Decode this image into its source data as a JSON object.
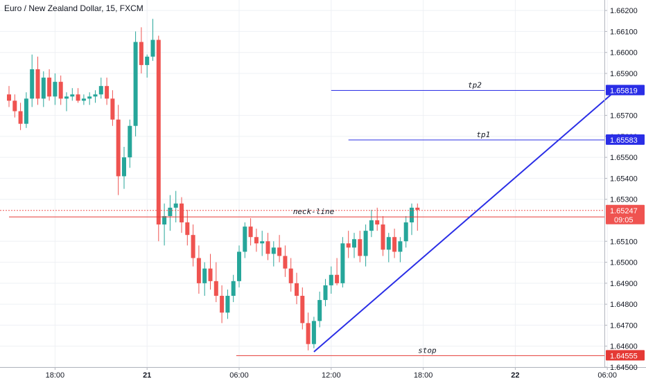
{
  "chart_data": {
    "type": "candlestick",
    "title": "Euro / New Zealand Dollar, 15, FXCM",
    "y_range": [
      1.645,
      1.6625
    ],
    "y_ticks": [
      "1.66200",
      "1.66100",
      "1.66000",
      "1.65900",
      "1.65700",
      "1.65600",
      "1.65500",
      "1.65400",
      "1.65300",
      "1.65100",
      "1.65000",
      "1.64900",
      "1.64800",
      "1.64700",
      "1.64600",
      "1.64500"
    ],
    "y_tick_values": [
      1.662,
      1.661,
      1.66,
      1.659,
      1.657,
      1.656,
      1.655,
      1.654,
      1.653,
      1.651,
      1.65,
      1.649,
      1.648,
      1.647,
      1.646,
      1.645
    ],
    "x_ticks": [
      {
        "label": "18:00",
        "i": 8,
        "bold": false
      },
      {
        "label": "21",
        "i": 24,
        "bold": true
      },
      {
        "label": "06:00",
        "i": 40,
        "bold": false
      },
      {
        "label": "12:00",
        "i": 56,
        "bold": false
      },
      {
        "label": "18:00",
        "i": 72,
        "bold": false
      },
      {
        "label": "22",
        "i": 88,
        "bold": true
      },
      {
        "label": "06:00",
        "i": 104,
        "bold": false
      }
    ],
    "up_color": "#26a69a",
    "down_color": "#ef5350",
    "candles": [
      [
        1.658,
        1.6584,
        1.6574,
        1.6577
      ],
      [
        1.6577,
        1.658,
        1.6569,
        1.6572
      ],
      [
        1.6572,
        1.6576,
        1.6563,
        1.6566
      ],
      [
        1.6566,
        1.6581,
        1.6564,
        1.6578
      ],
      [
        1.6578,
        1.6599,
        1.6574,
        1.6592
      ],
      [
        1.6592,
        1.6598,
        1.6575,
        1.6578
      ],
      [
        1.6578,
        1.6591,
        1.6574,
        1.6588
      ],
      [
        1.6588,
        1.6592,
        1.6577,
        1.6579
      ],
      [
        1.6579,
        1.659,
        1.6575,
        1.6586
      ],
      [
        1.6586,
        1.6589,
        1.6575,
        1.6578
      ],
      [
        1.6578,
        1.6581,
        1.6572,
        1.6579
      ],
      [
        1.6579,
        1.6583,
        1.6577,
        1.658
      ],
      [
        1.658,
        1.6583,
        1.6576,
        1.6577
      ],
      [
        1.6577,
        1.658,
        1.6575,
        1.6578
      ],
      [
        1.6578,
        1.6581,
        1.6575,
        1.6579
      ],
      [
        1.6579,
        1.6582,
        1.6576,
        1.658
      ],
      [
        1.658,
        1.6588,
        1.6578,
        1.6584
      ],
      [
        1.6584,
        1.6588,
        1.6575,
        1.6578
      ],
      [
        1.6578,
        1.6582,
        1.6565,
        1.6568
      ],
      [
        1.6568,
        1.6575,
        1.6532,
        1.6541
      ],
      [
        1.6541,
        1.6555,
        1.6535,
        1.655
      ],
      [
        1.655,
        1.6568,
        1.6545,
        1.6565
      ],
      [
        1.6565,
        1.661,
        1.656,
        1.6605
      ],
      [
        1.6605,
        1.6612,
        1.659,
        1.6594
      ],
      [
        1.6594,
        1.6599,
        1.6588,
        1.6598
      ],
      [
        1.6598,
        1.6616,
        1.6596,
        1.6606
      ],
      [
        1.6606,
        1.6608,
        1.651,
        1.6518
      ],
      [
        1.6518,
        1.6528,
        1.6508,
        1.6522
      ],
      [
        1.6522,
        1.6532,
        1.6515,
        1.6526
      ],
      [
        1.6526,
        1.6534,
        1.6519,
        1.6528
      ],
      [
        1.6528,
        1.6531,
        1.6514,
        1.6519
      ],
      [
        1.6519,
        1.6525,
        1.6508,
        1.6513
      ],
      [
        1.6513,
        1.6518,
        1.6498,
        1.6502
      ],
      [
        1.6502,
        1.6508,
        1.6485,
        1.649
      ],
      [
        1.649,
        1.65,
        1.6484,
        1.6497
      ],
      [
        1.6497,
        1.6504,
        1.6487,
        1.6491
      ],
      [
        1.6491,
        1.65,
        1.6481,
        1.6484
      ],
      [
        1.6484,
        1.6489,
        1.6471,
        1.6476
      ],
      [
        1.6476,
        1.6487,
        1.6473,
        1.6484
      ],
      [
        1.6484,
        1.6494,
        1.6481,
        1.6491
      ],
      [
        1.6491,
        1.6508,
        1.6488,
        1.6505
      ],
      [
        1.6505,
        1.6519,
        1.6502,
        1.6517
      ],
      [
        1.6517,
        1.6521,
        1.6508,
        1.6512
      ],
      [
        1.6512,
        1.6516,
        1.6505,
        1.6509
      ],
      [
        1.6509,
        1.6515,
        1.6503,
        1.651
      ],
      [
        1.651,
        1.6514,
        1.6501,
        1.6504
      ],
      [
        1.6504,
        1.651,
        1.6498,
        1.6507
      ],
      [
        1.6507,
        1.6513,
        1.65,
        1.6503
      ],
      [
        1.6503,
        1.6508,
        1.6493,
        1.6497
      ],
      [
        1.6497,
        1.6502,
        1.6486,
        1.649
      ],
      [
        1.649,
        1.6495,
        1.648,
        1.6484
      ],
      [
        1.6484,
        1.6488,
        1.6468,
        1.6471
      ],
      [
        1.6471,
        1.6476,
        1.6458,
        1.6461
      ],
      [
        1.6461,
        1.6474,
        1.6459,
        1.6472
      ],
      [
        1.6472,
        1.6486,
        1.6469,
        1.6482
      ],
      [
        1.6482,
        1.6492,
        1.6479,
        1.6489
      ],
      [
        1.6489,
        1.6498,
        1.6485,
        1.6494
      ],
      [
        1.6494,
        1.6502,
        1.6489,
        1.649
      ],
      [
        1.649,
        1.6512,
        1.6488,
        1.6509
      ],
      [
        1.6509,
        1.6515,
        1.6502,
        1.6507
      ],
      [
        1.6507,
        1.6514,
        1.6502,
        1.6511
      ],
      [
        1.6511,
        1.6515,
        1.65,
        1.6503
      ],
      [
        1.6503,
        1.6518,
        1.6498,
        1.6515
      ],
      [
        1.6515,
        1.6525,
        1.6512,
        1.652
      ],
      [
        1.652,
        1.6526,
        1.6515,
        1.6518
      ],
      [
        1.6518,
        1.6522,
        1.6503,
        1.6506
      ],
      [
        1.6506,
        1.6514,
        1.65,
        1.6512
      ],
      [
        1.6512,
        1.6516,
        1.6502,
        1.6505
      ],
      [
        1.6505,
        1.6512,
        1.65,
        1.651
      ],
      [
        1.651,
        1.6522,
        1.6507,
        1.6519
      ],
      [
        1.6519,
        1.6528,
        1.6513,
        1.6526
      ],
      [
        1.6526,
        1.6528,
        1.6515,
        1.6525
      ]
    ],
    "horizontal_lines": [
      {
        "name": "tp2",
        "label": "tp2",
        "price": 1.65819,
        "from_i": 56.0,
        "color": "#2a2ee6",
        "badge": "1.65819"
      },
      {
        "name": "tp1",
        "label": "tp1",
        "price": 1.65583,
        "from_i": 59.0,
        "color": "#2a2ee6",
        "badge": "1.65583"
      },
      {
        "name": "neck-line",
        "label": "neck-line",
        "price": 1.65216,
        "from_i": 0,
        "color": "#e53935",
        "badge": "1.65216"
      },
      {
        "name": "stop",
        "label": "stop",
        "price": 1.64555,
        "from_i": 39.5,
        "color": "#e53935",
        "badge": "1.64555"
      }
    ],
    "current_price": {
      "price": 1.65247,
      "label": "1.65247",
      "countdown": "09:05",
      "color": "#ef5350"
    },
    "trendline": {
      "from": {
        "i": 53.0,
        "price": 1.64573
      },
      "to": {
        "i": 105.5,
        "price": 1.65819
      },
      "color": "#2a2ee6"
    }
  }
}
